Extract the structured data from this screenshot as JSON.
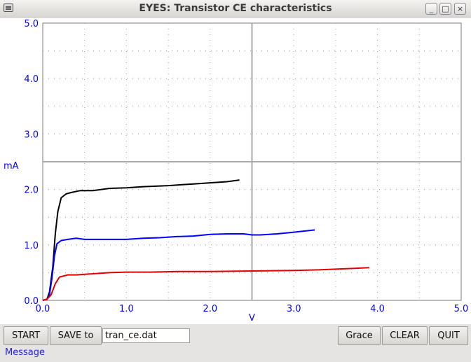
{
  "window": {
    "title": "EYES: Transistor CE characteristics",
    "minimize_symbol": "_",
    "maximize_symbol": "□",
    "close_symbol": "×"
  },
  "chart_data": {
    "type": "line",
    "xlabel": "V",
    "ylabel": "mA",
    "xlim": [
      0,
      5
    ],
    "ylim": [
      0,
      5
    ],
    "x_ticks": [
      "0.0",
      "1.0",
      "2.0",
      "3.0",
      "4.0",
      "5.0"
    ],
    "y_ticks": [
      "0.0",
      "1.0",
      "2.0",
      "3.0",
      "4.0",
      "5.0"
    ],
    "grid": "dotted",
    "cursor_crosshair": {
      "x": 2.5,
      "y": 2.5
    },
    "axis_label_color": "#0000ff",
    "series": [
      {
        "color": "#000000",
        "points": [
          [
            0.0,
            0.0
          ],
          [
            0.05,
            0.02
          ],
          [
            0.08,
            0.15
          ],
          [
            0.12,
            0.6
          ],
          [
            0.15,
            1.2
          ],
          [
            0.18,
            1.6
          ],
          [
            0.22,
            1.85
          ],
          [
            0.28,
            1.92
          ],
          [
            0.35,
            1.95
          ],
          [
            0.45,
            1.98
          ],
          [
            0.6,
            1.98
          ],
          [
            0.8,
            2.02
          ],
          [
            1.0,
            2.03
          ],
          [
            1.2,
            2.05
          ],
          [
            1.5,
            2.07
          ],
          [
            1.8,
            2.1
          ],
          [
            2.0,
            2.12
          ],
          [
            2.2,
            2.14
          ],
          [
            2.35,
            2.17
          ]
        ]
      },
      {
        "color": "#0000ff",
        "points": [
          [
            0.0,
            0.0
          ],
          [
            0.05,
            0.02
          ],
          [
            0.08,
            0.1
          ],
          [
            0.11,
            0.4
          ],
          [
            0.14,
            0.8
          ],
          [
            0.17,
            1.02
          ],
          [
            0.22,
            1.08
          ],
          [
            0.3,
            1.1
          ],
          [
            0.4,
            1.12
          ],
          [
            0.5,
            1.1
          ],
          [
            0.6,
            1.1
          ],
          [
            0.8,
            1.1
          ],
          [
            1.0,
            1.1
          ],
          [
            1.2,
            1.12
          ],
          [
            1.4,
            1.13
          ],
          [
            1.6,
            1.15
          ],
          [
            1.8,
            1.16
          ],
          [
            2.0,
            1.19
          ],
          [
            2.2,
            1.2
          ],
          [
            2.4,
            1.2
          ],
          [
            2.5,
            1.18
          ],
          [
            2.6,
            1.18
          ],
          [
            2.8,
            1.2
          ],
          [
            3.0,
            1.23
          ],
          [
            3.25,
            1.27
          ]
        ]
      },
      {
        "color": "#e00000",
        "points": [
          [
            0.0,
            0.0
          ],
          [
            0.05,
            0.02
          ],
          [
            0.1,
            0.1
          ],
          [
            0.15,
            0.3
          ],
          [
            0.2,
            0.42
          ],
          [
            0.3,
            0.46
          ],
          [
            0.4,
            0.46
          ],
          [
            0.6,
            0.48
          ],
          [
            0.8,
            0.5
          ],
          [
            1.0,
            0.51
          ],
          [
            1.3,
            0.51
          ],
          [
            1.6,
            0.52
          ],
          [
            2.0,
            0.52
          ],
          [
            2.5,
            0.53
          ],
          [
            3.0,
            0.54
          ],
          [
            3.3,
            0.55
          ],
          [
            3.6,
            0.57
          ],
          [
            3.9,
            0.59
          ]
        ]
      }
    ]
  },
  "controls": {
    "start_label": "START",
    "save_label": "SAVE to",
    "filename": "tran_ce.dat",
    "grace_label": "Grace",
    "clear_label": "CLEAR",
    "quit_label": "QUIT"
  },
  "status": {
    "message": "Message"
  }
}
